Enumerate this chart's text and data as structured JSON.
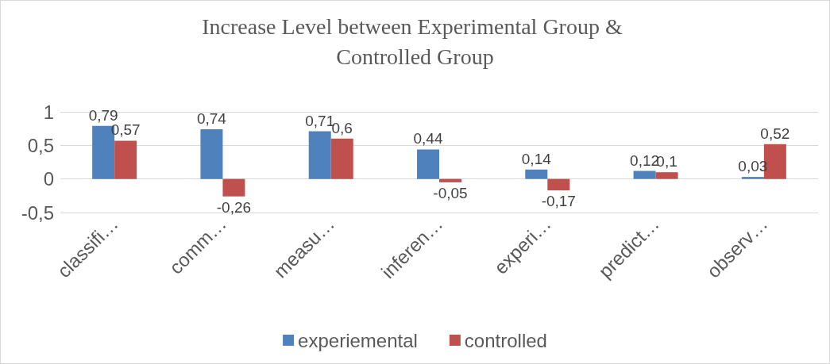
{
  "chart_data": {
    "type": "bar",
    "title": "Increase Level between Experimental Group & Controlled Group",
    "categories": [
      "classifi…",
      "comm…",
      "measu…",
      "inferen…",
      "experi…",
      "predict…",
      "observ…"
    ],
    "series": [
      {
        "name": "experiemental",
        "color": "#4f81bd",
        "values": [
          0.79,
          0.74,
          0.71,
          0.44,
          0.14,
          0.12,
          0.03
        ],
        "value_labels": [
          "0,79",
          "0,74",
          "0,71",
          "0,44",
          "0,14",
          "0,12",
          "0,03"
        ]
      },
      {
        "name": "controlled",
        "color": "#c0504d",
        "values": [
          0.57,
          -0.26,
          0.6,
          -0.05,
          -0.17,
          0.1,
          0.52
        ],
        "value_labels": [
          "0,57",
          "-0,26",
          "0,6",
          "-0,05",
          "-0,17",
          "0,1",
          "0,52"
        ]
      }
    ],
    "ylim": [
      -0.5,
      1
    ],
    "yticks": [
      {
        "value": -0.5,
        "label": "-0,5"
      },
      {
        "value": 0,
        "label": "0"
      },
      {
        "value": 0.5,
        "label": "0,5"
      },
      {
        "value": 1,
        "label": "1"
      }
    ],
    "grid": "y",
    "legend": "bottom"
  }
}
